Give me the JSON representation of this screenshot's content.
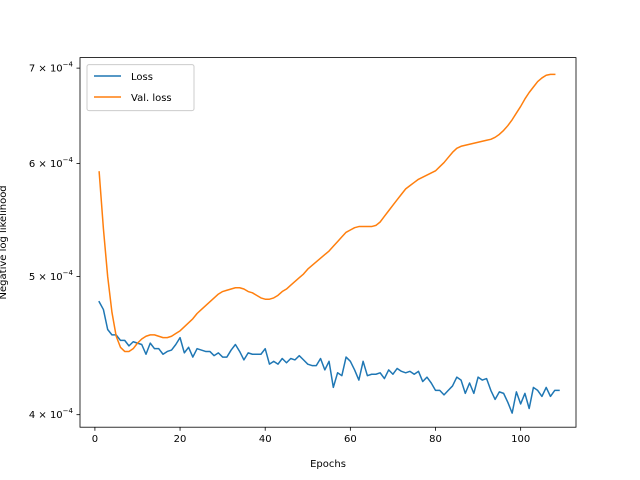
{
  "chart_data": {
    "type": "line",
    "title": "",
    "xlabel": "Epochs",
    "ylabel": "Negative log likelihood",
    "yscale": "log",
    "xlim": [
      -3.5,
      113
    ],
    "ylim": [
      0.000392,
      0.000712
    ],
    "xticks": [
      0,
      20,
      40,
      60,
      80,
      100
    ],
    "xtick_labels": [
      "0",
      "20",
      "40",
      "60",
      "80",
      "100"
    ],
    "yticks": [
      0.0004,
      0.0005,
      0.0006,
      0.0007
    ],
    "ytick_labels": [
      {
        "mantissa": "4",
        "times": "×",
        "base": "10",
        "exp": "−4"
      },
      {
        "mantissa": "5",
        "times": "×",
        "base": "10",
        "exp": "−4"
      },
      {
        "mantissa": "6",
        "times": "×",
        "base": "10",
        "exp": "−4"
      },
      {
        "mantissa": "7",
        "times": "×",
        "base": "10",
        "exp": "−4"
      }
    ],
    "grid": false,
    "legend_position": "upper-left",
    "series": [
      {
        "name": "Loss",
        "color": "#1f77b4",
        "x_start": 1,
        "x_step": 1,
        "values": [
          0.00048,
          0.000474,
          0.000459,
          0.000455,
          0.000455,
          0.000451,
          0.000451,
          0.000447,
          0.00045,
          0.000449,
          0.000448,
          0.000441,
          0.000449,
          0.000445,
          0.000445,
          0.000441,
          0.000443,
          0.000444,
          0.000448,
          0.000453,
          0.000442,
          0.000446,
          0.000439,
          0.000445,
          0.000444,
          0.000443,
          0.000443,
          0.00044,
          0.000442,
          0.000439,
          0.000439,
          0.000444,
          0.000448,
          0.000443,
          0.000437,
          0.000442,
          0.000441,
          0.000441,
          0.000441,
          0.000445,
          0.000434,
          0.000436,
          0.000434,
          0.000438,
          0.000435,
          0.000438,
          0.000437,
          0.00044,
          0.000437,
          0.000434,
          0.000433,
          0.000433,
          0.000438,
          0.00043,
          0.000436,
          0.000418,
          0.000428,
          0.000426,
          0.000439,
          0.000436,
          0.00043,
          0.000423,
          0.000436,
          0.000426,
          0.000427,
          0.000427,
          0.000428,
          0.000424,
          0.00043,
          0.000427,
          0.000431,
          0.000429,
          0.000428,
          0.000429,
          0.000427,
          0.000429,
          0.000422,
          0.000425,
          0.000421,
          0.000416,
          0.000416,
          0.000413,
          0.000416,
          0.000419,
          0.000425,
          0.000423,
          0.000414,
          0.000421,
          0.000414,
          0.000425,
          0.000423,
          0.000424,
          0.000416,
          0.00041,
          0.000415,
          0.000414,
          0.000408,
          0.000401,
          0.000415,
          0.000407,
          0.000414,
          0.000404,
          0.000418,
          0.000416,
          0.000412,
          0.000418,
          0.000412,
          0.000416,
          0.000416
        ]
      },
      {
        "name": "Val. loss",
        "color": "#ff7f0e",
        "x_start": 1,
        "x_step": 1,
        "values": [
          0.000592,
          0.00054,
          0.0005,
          0.000472,
          0.000454,
          0.000446,
          0.000443,
          0.000443,
          0.000445,
          0.000449,
          0.000452,
          0.000454,
          0.000455,
          0.000455,
          0.000454,
          0.000453,
          0.000453,
          0.000454,
          0.000456,
          0.000458,
          0.000461,
          0.000464,
          0.000467,
          0.000471,
          0.000474,
          0.000477,
          0.00048,
          0.000483,
          0.000486,
          0.000488,
          0.000489,
          0.00049,
          0.000491,
          0.000491,
          0.00049,
          0.000488,
          0.000487,
          0.000485,
          0.000483,
          0.000482,
          0.000482,
          0.000483,
          0.000485,
          0.000488,
          0.00049,
          0.000493,
          0.000496,
          0.000499,
          0.000502,
          0.000506,
          0.000509,
          0.000512,
          0.000515,
          0.000518,
          0.000521,
          0.000525,
          0.000529,
          0.000533,
          0.000537,
          0.000539,
          0.000541,
          0.000542,
          0.000542,
          0.000542,
          0.000542,
          0.000543,
          0.000546,
          0.000551,
          0.000556,
          0.000561,
          0.000566,
          0.000571,
          0.000576,
          0.000579,
          0.000582,
          0.000585,
          0.000587,
          0.000589,
          0.000591,
          0.000593,
          0.000597,
          0.000601,
          0.000606,
          0.000611,
          0.000615,
          0.000617,
          0.000618,
          0.000619,
          0.00062,
          0.000621,
          0.000622,
          0.000623,
          0.000624,
          0.000626,
          0.000629,
          0.000633,
          0.000638,
          0.000644,
          0.000651,
          0.000658,
          0.000666,
          0.000673,
          0.000679,
          0.000685,
          0.000689,
          0.000692,
          0.000693,
          0.000693
        ]
      }
    ]
  }
}
